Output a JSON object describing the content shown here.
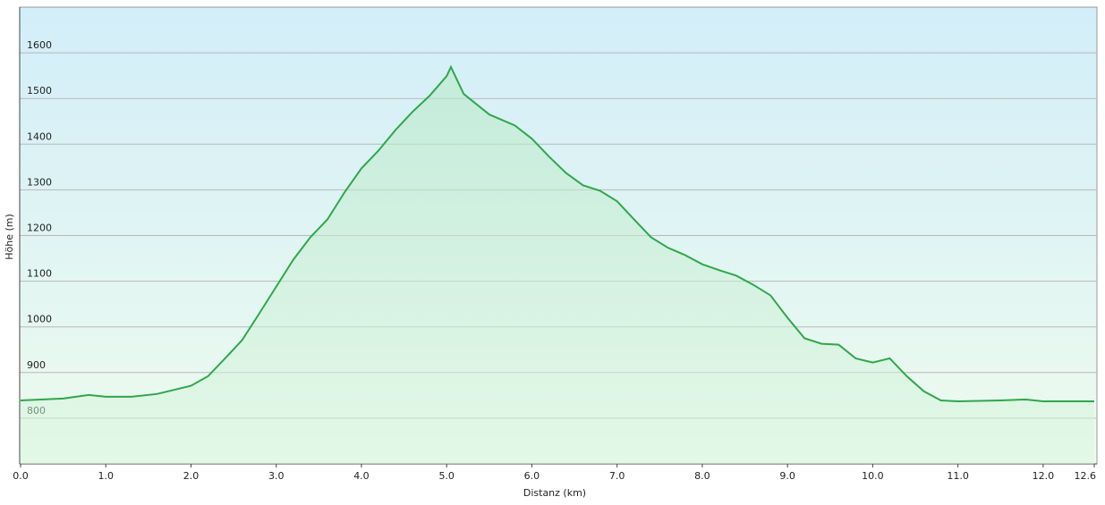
{
  "chart_data": {
    "type": "area",
    "x_label": "Distanz  (km)",
    "y_label": "Höhe (m)",
    "x": [
      0,
      0.5,
      0.8,
      1.0,
      1.3,
      1.6,
      2.0,
      2.2,
      2.4,
      2.6,
      2.8,
      3.0,
      3.2,
      3.4,
      3.6,
      3.8,
      4.0,
      4.2,
      4.4,
      4.6,
      4.8,
      5.0,
      5.05,
      5.2,
      5.4,
      5.5,
      5.8,
      6.0,
      6.2,
      6.4,
      6.6,
      6.8,
      7.0,
      7.2,
      7.4,
      7.6,
      7.8,
      8.0,
      8.2,
      8.4,
      8.6,
      8.8,
      9.0,
      9.2,
      9.4,
      9.6,
      9.8,
      10.0,
      10.2,
      10.4,
      10.6,
      10.8,
      11.0,
      11.5,
      11.8,
      12.0,
      12.6
    ],
    "series": [
      {
        "color": "#2ea84a",
        "values": [
          839,
          843,
          851,
          847,
          847,
          853,
          871,
          892,
          931,
          971,
          1029,
          1088,
          1147,
          1196,
          1235,
          1294,
          1347,
          1386,
          1431,
          1471,
          1506,
          1549,
          1569,
          1510,
          1480,
          1465,
          1441,
          1412,
          1373,
          1337,
          1310,
          1298,
          1275,
          1235,
          1196,
          1173,
          1157,
          1137,
          1124,
          1112,
          1092,
          1069,
          1020,
          975,
          963,
          961,
          931,
          922,
          931,
          892,
          859,
          839,
          837,
          839,
          841,
          837,
          837
        ]
      }
    ],
    "xlim": [
      0,
      12.6
    ],
    "ylim": [
      700,
      1700
    ],
    "xticks": [
      {
        "value": 0,
        "label": "0.0"
      },
      {
        "value": 1,
        "label": "1.0"
      },
      {
        "value": 2,
        "label": "2.0"
      },
      {
        "value": 3,
        "label": "3.0"
      },
      {
        "value": 4,
        "label": "4.0"
      },
      {
        "value": 5,
        "label": "5.0"
      },
      {
        "value": 6,
        "label": "6.0"
      },
      {
        "value": 7,
        "label": "7.0"
      },
      {
        "value": 8,
        "label": "8.0"
      },
      {
        "value": 9,
        "label": "9.0"
      },
      {
        "value": 10,
        "label": "10.0"
      },
      {
        "value": 11,
        "label": "11.0"
      },
      {
        "value": 12,
        "label": "12.0"
      },
      12.6
    ],
    "yticks": [
      800,
      900,
      1000,
      1100,
      1200,
      1300,
      1400,
      1500,
      1600
    ],
    "grid": true
  }
}
